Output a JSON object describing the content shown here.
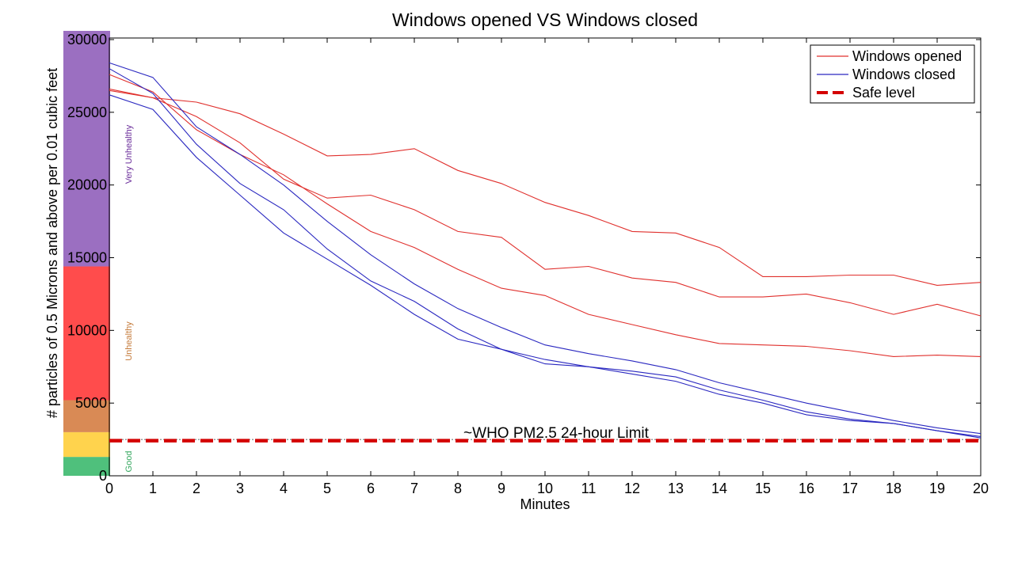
{
  "chart_data": {
    "type": "line",
    "title": "Windows opened VS Windows closed",
    "xlabel": "Minutes",
    "ylabel": "# particles of 0.5 Microns and above per 0.01 cubic feet",
    "xlim": [
      0,
      20
    ],
    "ylim": [
      0,
      30000
    ],
    "x": [
      0,
      1,
      2,
      3,
      4,
      5,
      6,
      7,
      8,
      9,
      10,
      11,
      12,
      13,
      14,
      15,
      16,
      17,
      18,
      19,
      20
    ],
    "xticks": [
      "0",
      "1",
      "2",
      "3",
      "4",
      "5",
      "6",
      "7",
      "8",
      "9",
      "10",
      "11",
      "12",
      "13",
      "14",
      "15",
      "16",
      "17",
      "18",
      "19",
      "20"
    ],
    "yticks": [
      "0",
      "5000",
      "10000",
      "15000",
      "20000",
      "25000",
      "30000"
    ],
    "grid": false,
    "legend_position": "top-right",
    "legend": [
      {
        "label": "Windows opened",
        "color": "#e0302d",
        "style": "solid"
      },
      {
        "label": "Windows closed",
        "color": "#2a28c0",
        "style": "solid"
      },
      {
        "label": "Safe level",
        "color": "#d40000",
        "style": "dashed"
      }
    ],
    "series": [
      {
        "group": "Windows opened",
        "color": "#e0302d",
        "values": [
          26500,
          26000,
          25700,
          24900,
          23500,
          22000,
          22100,
          22500,
          21000,
          20100,
          18800,
          17900,
          16800,
          16700,
          15700,
          13700,
          13700,
          13800,
          13800,
          13100,
          13300
        ]
      },
      {
        "group": "Windows opened",
        "color": "#e0302d",
        "values": [
          26600,
          26000,
          24700,
          22900,
          20400,
          19100,
          19300,
          18300,
          16800,
          16400,
          14200,
          14400,
          13600,
          13300,
          12300,
          12300,
          12500,
          11900,
          11100,
          11800,
          11000
        ]
      },
      {
        "group": "Windows opened",
        "color": "#e0302d",
        "values": [
          27600,
          26400,
          23800,
          22100,
          20700,
          18700,
          16800,
          15700,
          14200,
          12900,
          12400,
          11100,
          10400,
          9700,
          9100,
          9000,
          8900,
          8600,
          8200,
          8300,
          8200
        ]
      },
      {
        "group": "Windows closed",
        "color": "#2a28c0",
        "values": [
          28400,
          27400,
          24000,
          22100,
          20000,
          17500,
          15200,
          13200,
          11500,
          10200,
          9000,
          8400,
          7900,
          7300,
          6400,
          5700,
          5000,
          4400,
          3800,
          3300,
          2900
        ]
      },
      {
        "group": "Windows closed",
        "color": "#2a28c0",
        "values": [
          26200,
          25200,
          21900,
          19300,
          16700,
          14900,
          13100,
          11100,
          9400,
          8700,
          8000,
          7500,
          7200,
          6800,
          5900,
          5200,
          4400,
          3900,
          3600,
          3100,
          2700
        ]
      },
      {
        "group": "Windows closed",
        "color": "#2a28c0",
        "values": [
          28000,
          26300,
          22800,
          20100,
          18300,
          15600,
          13400,
          12000,
          10100,
          8700,
          7700,
          7500,
          7000,
          6500,
          5600,
          5000,
          4200,
          3800,
          3600,
          3100,
          2600
        ]
      },
      {
        "group": "Safe level",
        "color": "#d40000",
        "dashed": true,
        "values": [
          2500,
          2500,
          2500,
          2500,
          2500,
          2500,
          2500,
          2500,
          2500,
          2500,
          2500,
          2500,
          2500,
          2500,
          2500,
          2500,
          2500,
          2500,
          2500,
          2500,
          2500
        ]
      }
    ],
    "bands": [
      {
        "name": "good",
        "label": "Good",
        "from": 0,
        "to": 1300,
        "color": "#4fc07c",
        "label_color": "#36a860"
      },
      {
        "name": "moderate",
        "label": "",
        "from": 1300,
        "to": 3000,
        "color": "#ffd34d",
        "label_color": "#c8a000"
      },
      {
        "name": "sensitive",
        "label": "",
        "from": 3000,
        "to": 5200,
        "color": "#d98a55",
        "label_color": "#b0703a"
      },
      {
        "name": "unhealthy",
        "label": "Unhealthy",
        "from": 5200,
        "to": 14400,
        "color": "#ff4c4c",
        "label_color": "#c47a3a"
      },
      {
        "name": "very-unhealthy",
        "label": "Very Unhealthy",
        "from": 14400,
        "to": 30600,
        "color": "#9b6fc1",
        "label_color": "#6a2c9a"
      }
    ],
    "annotations": [
      {
        "text": "~WHO PM2.5 24-hour Limit",
        "x": 10,
        "y": 2500
      }
    ]
  }
}
